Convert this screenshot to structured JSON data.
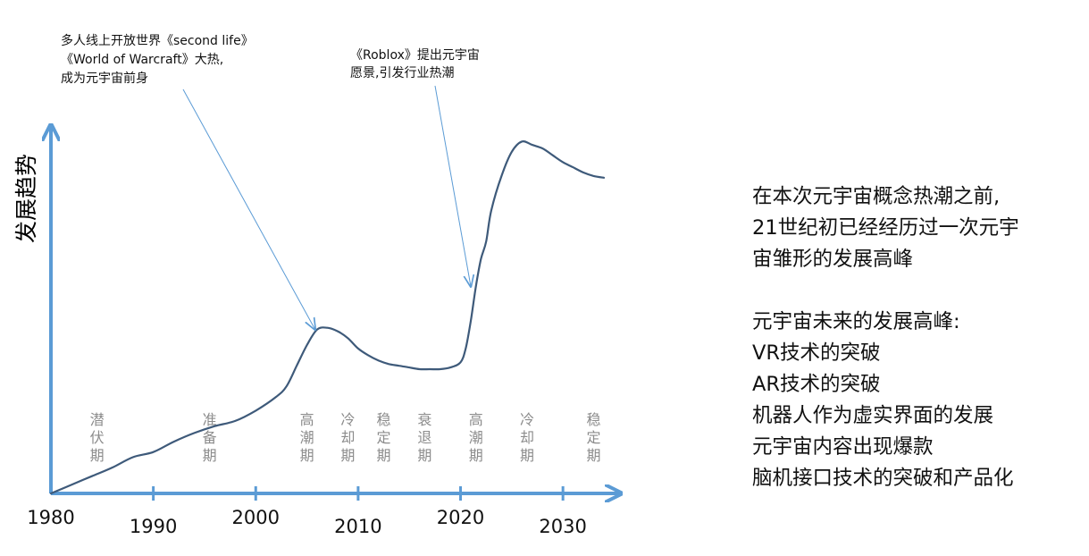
{
  "chart_data": {
    "type": "line",
    "ylabel": "发展趋势",
    "xlabel": "",
    "x_ticks": [
      1980,
      1990,
      2000,
      2010,
      2020,
      2030
    ],
    "xlim": [
      1980,
      2034
    ],
    "ylim": [
      0,
      100
    ],
    "grid": false,
    "series": [
      {
        "name": "",
        "x": [
          1980,
          1982,
          1984,
          1986,
          1988,
          1990,
          1992,
          1994,
          1996,
          1998,
          2000,
          2002,
          2003,
          2004,
          2005,
          2006,
          2007,
          2008,
          2009,
          2010,
          2011,
          2012,
          2013,
          2014,
          2015,
          2016,
          2017,
          2018,
          2019,
          2020,
          2020.5,
          2021,
          2021.5,
          2022,
          2022.5,
          2023,
          2024,
          2025,
          2026,
          2027,
          2028,
          2029,
          2030,
          2031,
          2032,
          2033,
          2034
        ],
        "values": [
          0,
          2.5,
          5,
          7.5,
          10.5,
          12,
          15,
          17.5,
          19.5,
          21,
          24,
          28,
          31,
          37,
          43,
          47.5,
          48,
          47,
          45,
          42,
          40,
          38.5,
          37.5,
          37,
          36.5,
          36,
          36,
          36,
          36.5,
          38,
          42,
          50,
          60,
          68,
          73,
          82,
          92,
          99,
          102,
          101,
          100,
          98,
          96,
          94.5,
          93,
          92,
          91.5
        ]
      }
    ],
    "phase_labels": [
      {
        "text": "潜伏期",
        "x": 1984.5
      },
      {
        "text": "准备期",
        "x": 1995.5
      },
      {
        "text": "高潮期",
        "x": 2005
      },
      {
        "text": "冷却期",
        "x": 2009
      },
      {
        "text": "稳定期",
        "x": 2012.5
      },
      {
        "text": "衰退期",
        "x": 2016.5
      },
      {
        "text": "高潮期",
        "x": 2021.5
      },
      {
        "text": "冷却期",
        "x": 2026.5
      },
      {
        "text": "稳定期",
        "x": 2033
      }
    ],
    "annotations": [
      {
        "lines": [
          "多人线上开放世界《second life》",
          "《World of Warcraft》大热,",
          "成为元宇宙前身"
        ],
        "target_x": 2005.8,
        "target_y": 47.5
      },
      {
        "lines": [
          "《Roblox》提出元宇宙",
          "愿景,引发行业热潮"
        ],
        "target_x": 2021,
        "target_y": 60
      }
    ]
  },
  "side_text": {
    "para1": [
      "在本次元宇宙概念热潮之前,",
      "21世纪初已经经历过一次元宇",
      "宙雏形的发展高峰"
    ],
    "para2": [
      "元宇宙未来的发展高峰:",
      "VR技术的突破",
      "AR技术的突破",
      "机器人作为虚实界面的发展",
      "元宇宙内容出现爆款",
      "脑机接口技术的突破和产品化"
    ]
  }
}
